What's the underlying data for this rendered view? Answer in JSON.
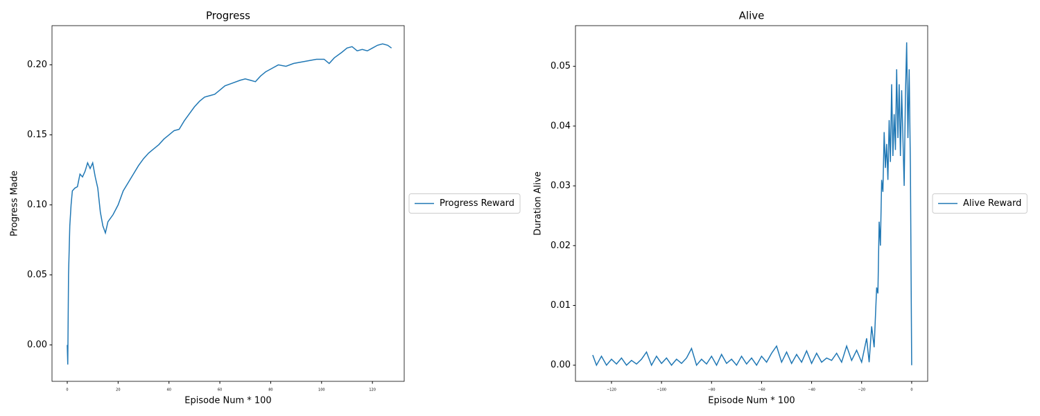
{
  "chart_data": [
    {
      "type": "line",
      "title": "Progress",
      "xlabel": "Episode Num * 100",
      "ylabel": "Progress Made",
      "legend": "outside right",
      "xlim": [
        -6,
        132.5
      ],
      "ylim": [
        -0.026,
        0.228
      ],
      "xticks": [
        0,
        20,
        40,
        60,
        80,
        100,
        120
      ],
      "yticks": [
        {
          "value": 0,
          "label": "0.00"
        },
        {
          "value": 0.05,
          "label": "0.05"
        },
        {
          "value": 0.1,
          "label": "0.10"
        },
        {
          "value": 0.15,
          "label": "0.15"
        },
        {
          "value": 0.2,
          "label": "0.20"
        }
      ],
      "x": [
        0,
        0.2,
        0.5,
        1,
        1.5,
        2,
        3,
        4,
        5,
        6,
        7,
        8,
        9,
        10,
        11,
        12,
        13,
        14,
        15,
        16,
        18,
        20,
        22,
        24,
        26,
        28,
        30,
        32,
        34,
        36,
        38,
        40,
        42,
        44,
        46,
        48,
        50,
        52,
        54,
        56,
        58,
        60,
        62,
        65,
        68,
        70,
        72,
        74,
        76,
        78,
        80,
        83,
        86,
        89,
        92,
        95,
        98,
        101,
        103,
        105,
        108,
        110,
        112,
        114,
        116,
        118,
        120,
        122,
        124,
        126,
        127.5
      ],
      "series": [
        {
          "name": "Progress Reward",
          "color": "#1f77b4",
          "values": [
            0.0,
            -0.014,
            0.05,
            0.085,
            0.1,
            0.11,
            0.112,
            0.113,
            0.122,
            0.12,
            0.124,
            0.13,
            0.126,
            0.13,
            0.12,
            0.112,
            0.095,
            0.085,
            0.08,
            0.088,
            0.093,
            0.1,
            0.11,
            0.116,
            0.122,
            0.128,
            0.133,
            0.137,
            0.14,
            0.143,
            0.147,
            0.15,
            0.153,
            0.154,
            0.16,
            0.165,
            0.17,
            0.174,
            0.177,
            0.178,
            0.179,
            0.182,
            0.185,
            0.187,
            0.189,
            0.19,
            0.189,
            0.188,
            0.192,
            0.195,
            0.197,
            0.2,
            0.199,
            0.201,
            0.202,
            0.203,
            0.204,
            0.204,
            0.201,
            0.205,
            0.209,
            0.212,
            0.213,
            0.21,
            0.211,
            0.21,
            0.212,
            0.214,
            0.215,
            0.214,
            0.212
          ]
        }
      ]
    },
    {
      "type": "line",
      "title": "Alive",
      "xlabel": "Episode Num * 100",
      "ylabel": "Duration Alive",
      "legend": "outside right",
      "xlim": [
        -134.4,
        6.4
      ],
      "ylim": [
        -0.0027,
        0.0568
      ],
      "xticks": [
        {
          "value": -120,
          "label": "−120"
        },
        {
          "value": -100,
          "label": "−100"
        },
        {
          "value": -80,
          "label": "−80"
        },
        {
          "value": -60,
          "label": "−60"
        },
        {
          "value": -40,
          "label": "−40"
        },
        {
          "value": -20,
          "label": "−20"
        },
        0
      ],
      "yticks": [
        {
          "value": 0,
          "label": "0.00"
        },
        {
          "value": 0.01,
          "label": "0.01"
        },
        {
          "value": 0.02,
          "label": "0.02"
        },
        {
          "value": 0.03,
          "label": "0.03"
        },
        {
          "value": 0.04,
          "label": "0.04"
        },
        {
          "value": 0.05,
          "label": "0.05"
        }
      ],
      "x": [
        -127.5,
        -126,
        -124,
        -122,
        -120,
        -118,
        -116,
        -114,
        -112,
        -110,
        -108,
        -106,
        -104,
        -102,
        -100,
        -98,
        -96,
        -94,
        -92,
        -90,
        -88,
        -86,
        -84,
        -82,
        -80,
        -78,
        -76,
        -74,
        -72,
        -70,
        -68,
        -66,
        -64,
        -62,
        -60,
        -58,
        -56,
        -54,
        -52,
        -50,
        -48,
        -46,
        -44,
        -42,
        -40,
        -38,
        -36,
        -34,
        -32,
        -30,
        -28,
        -26,
        -24,
        -22,
        -20,
        -18,
        -17,
        -16,
        -15,
        -14,
        -13.5,
        -13,
        -12.5,
        -12,
        -11.5,
        -11,
        -10.5,
        -10,
        -9.5,
        -9,
        -8.5,
        -8,
        -7.5,
        -7,
        -6.5,
        -6,
        -5.5,
        -5,
        -4.5,
        -4,
        -3.5,
        -3,
        -2.5,
        -2,
        -1.5,
        -1,
        -0.5,
        0
      ],
      "series": [
        {
          "name": "Alive Reward",
          "color": "#1f77b4",
          "values": [
            0.0017,
            0.0,
            0.0015,
            0.0,
            0.001,
            0.0002,
            0.0012,
            0.0,
            0.0008,
            0.0002,
            0.001,
            0.0022,
            0.0,
            0.0015,
            0.0003,
            0.0012,
            0.0,
            0.001,
            0.0003,
            0.0012,
            0.0028,
            0.0,
            0.001,
            0.0002,
            0.0015,
            0.0,
            0.0018,
            0.0003,
            0.001,
            0.0,
            0.0015,
            0.0002,
            0.0012,
            0.0,
            0.0015,
            0.0005,
            0.002,
            0.0032,
            0.0005,
            0.0022,
            0.0003,
            0.0018,
            0.0005,
            0.0024,
            0.0003,
            0.002,
            0.0005,
            0.0012,
            0.0008,
            0.002,
            0.0005,
            0.0032,
            0.0008,
            0.0025,
            0.0005,
            0.0045,
            0.0005,
            0.0065,
            0.003,
            0.013,
            0.012,
            0.024,
            0.02,
            0.031,
            0.029,
            0.039,
            0.033,
            0.037,
            0.031,
            0.041,
            0.034,
            0.047,
            0.035,
            0.042,
            0.036,
            0.0495,
            0.038,
            0.047,
            0.035,
            0.046,
            0.038,
            0.03,
            0.045,
            0.054,
            0.038,
            0.0495,
            0.033,
            0.0
          ]
        }
      ]
    }
  ]
}
